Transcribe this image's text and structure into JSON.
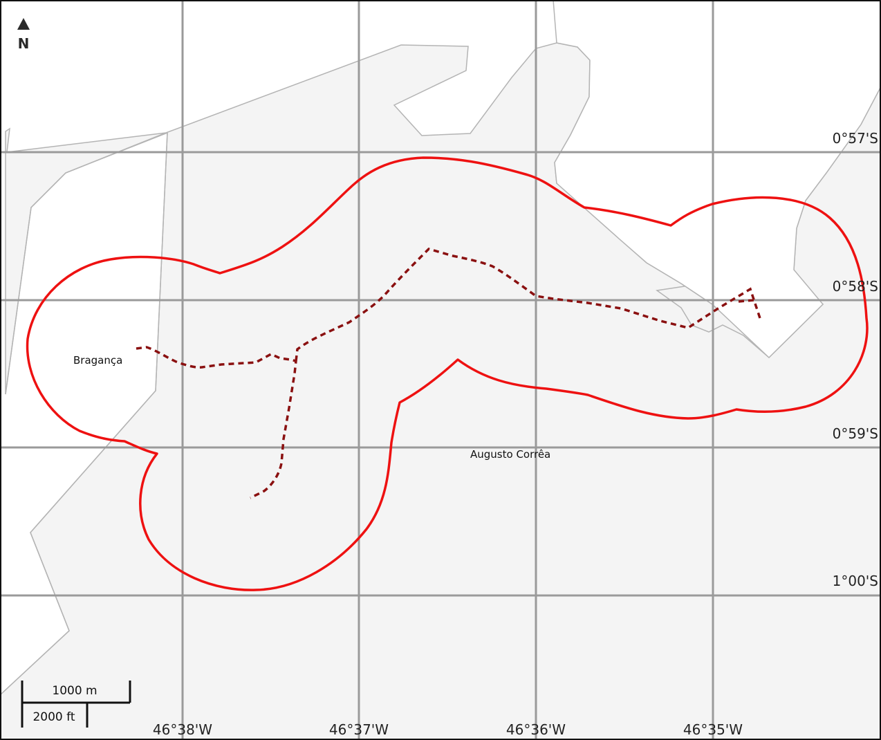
{
  "map": {
    "north_arrow_label": "N",
    "latitude_labels": [
      "0°57'S",
      "0°58'S",
      "0°59'S",
      "1°00'S"
    ],
    "longitude_labels": [
      "46°38'W",
      "46°37'W",
      "46°36'W",
      "46°35'W"
    ],
    "place_labels": {
      "braganca": "Bragança",
      "augusto_correa": "Augusto Corrêa"
    },
    "scale_bar": {
      "metric_label": "1000 m",
      "imperial_label": "2000 ft"
    },
    "colors": {
      "land": "#f4f4f4",
      "water": "#ffffff",
      "coastline": "#b4b4b4",
      "grid": "#9a9a9a",
      "buffer_outline": "#ee1111",
      "route": "#8a1010"
    }
  }
}
